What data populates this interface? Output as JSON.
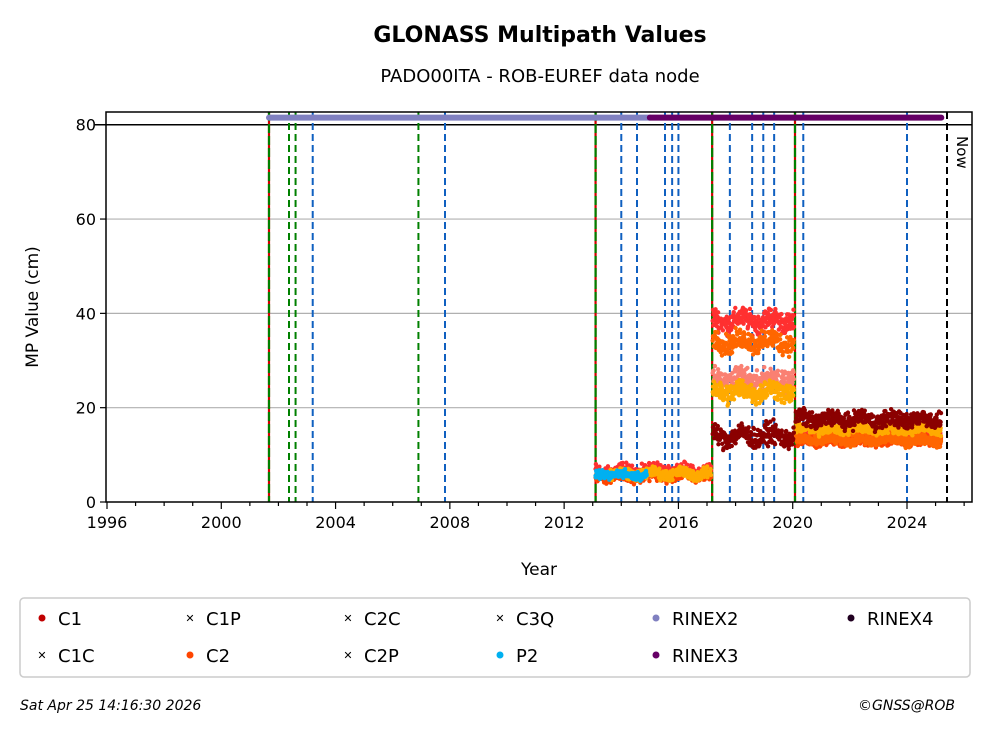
{
  "chart_data": {
    "type": "scatter",
    "title": "GLONASS Multipath Values",
    "subtitle": "PADO00ITA - ROB-EUREF data node",
    "xlabel": "Year",
    "ylabel": "MP Value (cm)",
    "xlim": [
      1996,
      2026.3
    ],
    "ylim": [
      0,
      82.7
    ],
    "xticks": [
      1996,
      2000,
      2004,
      2008,
      2012,
      2016,
      2020,
      2024
    ],
    "yticks": [
      0,
      20,
      40,
      60,
      80
    ],
    "grid": "y",
    "now_label": "Now",
    "now_year": 2025.4,
    "reference_line": 80,
    "vlines": {
      "receiver_antenna_change": [
        2001.67,
        2013.1,
        2017.18,
        2020.08
      ],
      "antenna_change": [
        2002.37,
        2002.6,
        2006.9
      ],
      "receiver_change": [
        2003.2,
        2007.83,
        2014.0,
        2014.55,
        2015.53,
        2015.78,
        2016.0,
        2017.8,
        2018.58,
        2018.97,
        2019.35,
        2020.37,
        2024.0
      ]
    },
    "series": [
      {
        "name": "C1",
        "marker": "circle",
        "color": "#c00000",
        "segments": []
      },
      {
        "name": "C1C",
        "marker": "x",
        "color": "#ff3030",
        "segments": [
          {
            "start": 2013.1,
            "end": 2017.15,
            "mean": 6.5,
            "noise": 1
          },
          {
            "start": 2017.2,
            "end": 2020.05,
            "mean": 38.5,
            "noise": 1.5
          },
          {
            "start": 2020.1,
            "end": 2025.2,
            "mean": 14.5,
            "noise": 1
          }
        ]
      },
      {
        "name": "C1P",
        "marker": "x",
        "color": "#fa8072",
        "segments": [
          {
            "start": 2017.2,
            "end": 2020.05,
            "mean": 26,
            "noise": 1.5
          }
        ]
      },
      {
        "name": "C2",
        "marker": "circle",
        "color": "#ff4500",
        "segments": [
          {
            "start": 2013.1,
            "end": 2017.15,
            "mean": 5.5,
            "noise": 0.8
          },
          {
            "start": 2020.1,
            "end": 2025.2,
            "mean": 13,
            "noise": 0.8
          }
        ]
      },
      {
        "name": "C2C",
        "marker": "x",
        "color": "#ff6600",
        "segments": [
          {
            "start": 2017.2,
            "end": 2020.05,
            "mean": 34,
            "noise": 1.5
          },
          {
            "start": 2020.1,
            "end": 2025.2,
            "mean": 13.2,
            "noise": 0.8
          }
        ]
      },
      {
        "name": "C2P",
        "marker": "x",
        "color": "#ffaa00",
        "segments": [
          {
            "start": 2013.6,
            "end": 2017.15,
            "mean": 6,
            "noise": 0.8
          },
          {
            "start": 2017.2,
            "end": 2020.05,
            "mean": 23.5,
            "noise": 1.5
          },
          {
            "start": 2020.1,
            "end": 2025.2,
            "mean": 15.5,
            "noise": 0.8
          }
        ]
      },
      {
        "name": "C3Q",
        "marker": "x",
        "color": "#8b0000",
        "segments": [
          {
            "start": 2017.2,
            "end": 2020.05,
            "mean": 14,
            "noise": 1.5
          },
          {
            "start": 2020.1,
            "end": 2025.2,
            "mean": 17.5,
            "noise": 1.2
          }
        ]
      },
      {
        "name": "P2",
        "marker": "circle",
        "color": "#00b0f0",
        "segments": [
          {
            "start": 2013.1,
            "end": 2014.9,
            "mean": 5.8,
            "noise": 0.6
          }
        ]
      },
      {
        "name": "RINEX2",
        "marker": "circle",
        "color": "#8080c0",
        "segments": [
          {
            "start": 2001.67,
            "end": 2015.0,
            "mean": 81.5,
            "noise": 0
          }
        ]
      },
      {
        "name": "RINEX3",
        "marker": "circle",
        "color": "#660066",
        "segments": [
          {
            "start": 2015.0,
            "end": 2025.2,
            "mean": 81.5,
            "noise": 0
          }
        ]
      },
      {
        "name": "RINEX4",
        "marker": "circle",
        "color": "#200020",
        "segments": []
      }
    ]
  },
  "footer": {
    "timestamp": "Sat Apr 25 14:16:30 2026",
    "copyright": "©GNSS@ROB"
  }
}
